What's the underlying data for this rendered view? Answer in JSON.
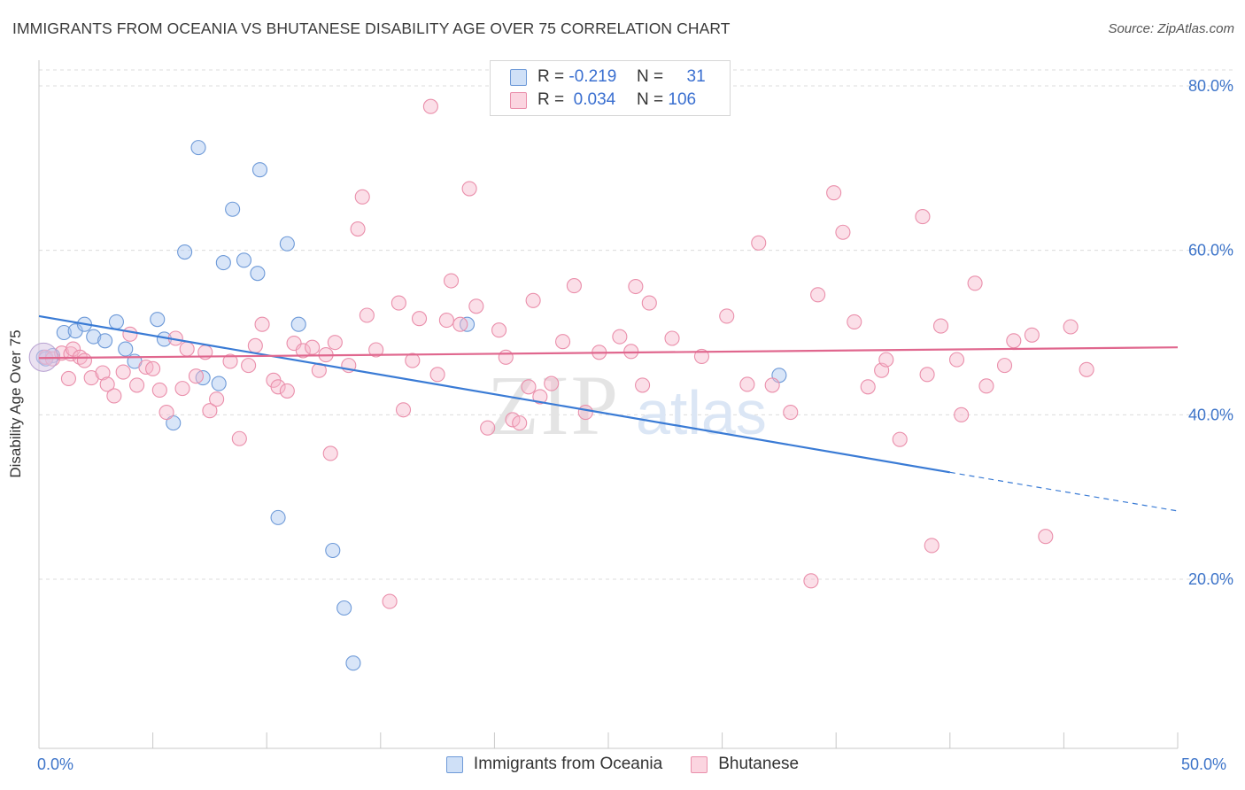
{
  "title": "IMMIGRANTS FROM OCEANIA VS BHUTANESE DISABILITY AGE OVER 75 CORRELATION CHART",
  "source": "Source: ZipAtlas.com",
  "watermark": {
    "zip": "ZIP",
    "atlas": "atlas"
  },
  "legend": {
    "rows": [
      {
        "r_label": "R =",
        "r_value": "-0.219",
        "n_label": "N =",
        "n_value": "31",
        "color": "#a8c6ef"
      },
      {
        "r_label": "R =",
        "r_value": "0.034",
        "n_label": "N =",
        "n_value": "106",
        "color": "#f6b9cb"
      }
    ]
  },
  "bottom_legend": [
    {
      "label": "Immigrants from Oceania",
      "color": "#a8c6ef"
    },
    {
      "label": "Bhutanese",
      "color": "#f6b9cb"
    }
  ],
  "chart_data": {
    "type": "scatter",
    "title": "IMMIGRANTS FROM OCEANIA VS BHUTANESE DISABILITY AGE OVER 75 CORRELATION CHART",
    "xlabel": "",
    "ylabel": "Disability Age Over 75",
    "xlim": [
      0,
      50
    ],
    "ylim": [
      0,
      85
    ],
    "x_tick_labels": [
      {
        "value": 0,
        "label": "0.0%"
      },
      {
        "value": 50,
        "label": "50.0%"
      }
    ],
    "y_tick_labels": [
      {
        "value": 20,
        "label": "20.0%"
      },
      {
        "value": 40,
        "label": "40.0%"
      },
      {
        "value": 60,
        "label": "60.0%"
      },
      {
        "value": 80,
        "label": "80.0%"
      }
    ],
    "grid": true,
    "legend_position": "top-center",
    "series": [
      {
        "name": "Immigrants from Oceania",
        "color": "#a8c6ef",
        "stroke": "#6e9ad8",
        "r": -0.219,
        "n": 31,
        "trend": {
          "x0": 0,
          "y0": 52.0,
          "x1": 40,
          "y1": 33.0,
          "dashed_to_x": 50,
          "dashed_to_y": 28.3,
          "color": "#3a7bd5"
        },
        "points": [
          [
            0.2,
            47.0
          ],
          [
            0.6,
            47.2
          ],
          [
            1.1,
            50.0
          ],
          [
            1.6,
            50.2
          ],
          [
            2.0,
            51.0
          ],
          [
            2.4,
            49.5
          ],
          [
            2.9,
            49.0
          ],
          [
            3.4,
            51.3
          ],
          [
            3.8,
            48.0
          ],
          [
            4.2,
            46.5
          ],
          [
            5.2,
            51.6
          ],
          [
            5.5,
            49.2
          ],
          [
            5.9,
            39.0
          ],
          [
            6.4,
            59.8
          ],
          [
            7.0,
            72.5
          ],
          [
            7.2,
            44.5
          ],
          [
            7.9,
            43.8
          ],
          [
            8.1,
            58.5
          ],
          [
            8.5,
            65.0
          ],
          [
            9.0,
            58.8
          ],
          [
            9.6,
            57.2
          ],
          [
            9.7,
            69.8
          ],
          [
            10.5,
            27.5
          ],
          [
            10.9,
            60.8
          ],
          [
            11.4,
            51.0
          ],
          [
            12.9,
            23.5
          ],
          [
            13.4,
            16.5
          ],
          [
            13.8,
            9.8
          ],
          [
            18.8,
            51.0
          ],
          [
            32.5,
            44.8
          ],
          [
            0.3,
            46.8
          ]
        ]
      },
      {
        "name": "Bhutanese",
        "color": "#f6b9cb",
        "stroke": "#ea8fab",
        "r": 0.034,
        "n": 106,
        "trend": {
          "x0": 0,
          "y0": 46.9,
          "x1": 50,
          "y1": 48.2,
          "color": "#e0678e"
        },
        "points": [
          [
            0.3,
            47.0
          ],
          [
            0.6,
            46.8
          ],
          [
            1.0,
            47.5
          ],
          [
            1.3,
            44.4
          ],
          [
            1.4,
            47.4
          ],
          [
            1.5,
            48.0
          ],
          [
            1.8,
            47.0
          ],
          [
            2.0,
            46.6
          ],
          [
            2.3,
            44.5
          ],
          [
            2.8,
            45.1
          ],
          [
            3.0,
            43.7
          ],
          [
            3.3,
            42.3
          ],
          [
            3.7,
            45.2
          ],
          [
            4.0,
            49.8
          ],
          [
            4.3,
            43.6
          ],
          [
            4.7,
            45.8
          ],
          [
            5.0,
            45.6
          ],
          [
            5.3,
            43.0
          ],
          [
            5.6,
            40.3
          ],
          [
            6.0,
            49.3
          ],
          [
            6.3,
            43.2
          ],
          [
            6.5,
            48.0
          ],
          [
            6.9,
            44.7
          ],
          [
            7.3,
            47.6
          ],
          [
            7.5,
            40.5
          ],
          [
            7.8,
            41.9
          ],
          [
            8.4,
            46.5
          ],
          [
            8.8,
            37.1
          ],
          [
            9.2,
            46.0
          ],
          [
            9.5,
            48.4
          ],
          [
            9.8,
            51.0
          ],
          [
            10.3,
            44.2
          ],
          [
            10.5,
            43.4
          ],
          [
            10.9,
            42.9
          ],
          [
            11.2,
            48.7
          ],
          [
            11.6,
            47.8
          ],
          [
            12.0,
            48.2
          ],
          [
            12.3,
            45.4
          ],
          [
            12.6,
            47.3
          ],
          [
            12.8,
            35.3
          ],
          [
            13.0,
            48.8
          ],
          [
            13.6,
            46.0
          ],
          [
            14.0,
            62.6
          ],
          [
            14.2,
            66.5
          ],
          [
            14.4,
            52.1
          ],
          [
            14.8,
            47.9
          ],
          [
            15.4,
            17.3
          ],
          [
            15.8,
            53.6
          ],
          [
            16.0,
            40.6
          ],
          [
            16.4,
            46.6
          ],
          [
            16.7,
            51.7
          ],
          [
            17.2,
            77.5
          ],
          [
            17.5,
            44.9
          ],
          [
            17.9,
            51.5
          ],
          [
            18.1,
            56.3
          ],
          [
            18.5,
            51.0
          ],
          [
            18.9,
            67.5
          ],
          [
            19.2,
            53.2
          ],
          [
            19.7,
            38.4
          ],
          [
            20.2,
            50.3
          ],
          [
            20.5,
            47.0
          ],
          [
            20.8,
            39.4
          ],
          [
            21.1,
            39.0
          ],
          [
            21.5,
            43.4
          ],
          [
            21.7,
            53.9
          ],
          [
            22.0,
            42.2
          ],
          [
            22.5,
            43.8
          ],
          [
            23.0,
            48.9
          ],
          [
            23.5,
            55.7
          ],
          [
            24.0,
            40.3
          ],
          [
            24.6,
            47.6
          ],
          [
            25.5,
            49.5
          ],
          [
            26.0,
            47.7
          ],
          [
            26.2,
            55.6
          ],
          [
            26.5,
            43.6
          ],
          [
            26.8,
            53.6
          ],
          [
            27.8,
            49.3
          ],
          [
            29.1,
            47.1
          ],
          [
            30.2,
            52.0
          ],
          [
            31.1,
            43.7
          ],
          [
            31.6,
            60.9
          ],
          [
            32.2,
            43.6
          ],
          [
            33.0,
            40.3
          ],
          [
            33.9,
            19.8
          ],
          [
            34.2,
            54.6
          ],
          [
            34.9,
            67.0
          ],
          [
            35.3,
            62.2
          ],
          [
            35.8,
            51.3
          ],
          [
            36.4,
            43.4
          ],
          [
            37.0,
            45.4
          ],
          [
            37.2,
            46.7
          ],
          [
            37.8,
            37.0
          ],
          [
            38.8,
            64.1
          ],
          [
            39.0,
            44.9
          ],
          [
            39.2,
            24.1
          ],
          [
            39.6,
            50.8
          ],
          [
            40.3,
            46.7
          ],
          [
            40.5,
            40.0
          ],
          [
            41.1,
            56.0
          ],
          [
            41.6,
            43.5
          ],
          [
            42.4,
            46.0
          ],
          [
            42.8,
            49.0
          ],
          [
            43.6,
            49.7
          ],
          [
            44.2,
            25.2
          ],
          [
            45.3,
            50.7
          ],
          [
            46.0,
            45.5
          ]
        ]
      }
    ]
  }
}
